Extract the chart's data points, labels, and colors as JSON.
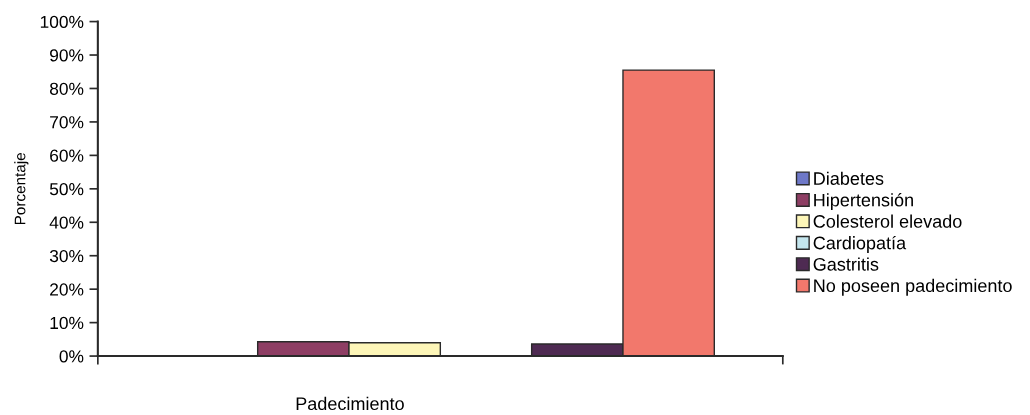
{
  "chart_data": {
    "type": "bar",
    "xlabel": "Padecimiento",
    "ylabel": "Porcentaje",
    "categories": [
      null
    ],
    "series": [
      {
        "name": "Diabetes",
        "color": "#6e78c8",
        "values": [
          0
        ]
      },
      {
        "name": "Hipertensión",
        "color": "#8e3e64",
        "values": [
          4.3
        ]
      },
      {
        "name": "Colesterol elevado",
        "color": "#fdf6b8",
        "values": [
          4.0
        ]
      },
      {
        "name": "Cardiopatía",
        "color": "#c4e6ee",
        "values": [
          0
        ]
      },
      {
        "name": "Gastritis",
        "color": "#4e2a52",
        "values": [
          3.6
        ]
      },
      {
        "name": "No poseen padecimiento",
        "color": "#f2786c",
        "values": [
          85.5
        ]
      }
    ],
    "ylim": [
      0,
      100
    ],
    "yticks": [
      {
        "value": 0,
        "label": "0%"
      },
      {
        "value": 10,
        "label": "10%"
      },
      {
        "value": 20,
        "label": "20%"
      },
      {
        "value": 30,
        "label": "30%"
      },
      {
        "value": 40,
        "label": "40%"
      },
      {
        "value": 50,
        "label": "50%"
      },
      {
        "value": 60,
        "label": "60%"
      },
      {
        "value": 70,
        "label": "70%"
      },
      {
        "value": 80,
        "label": "80%"
      },
      {
        "value": 90,
        "label": "90%"
      },
      {
        "value": 100,
        "label": "100%"
      }
    ],
    "grid": false,
    "legend": "right"
  }
}
